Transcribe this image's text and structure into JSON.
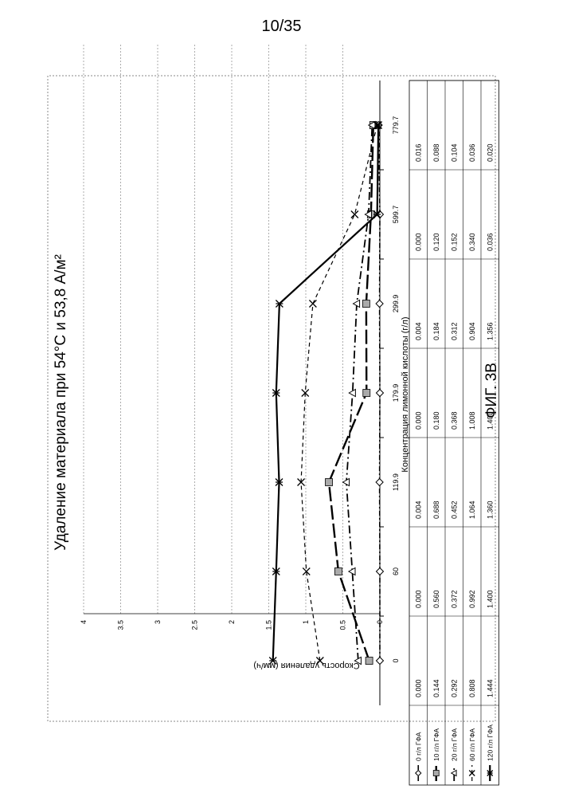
{
  "page_number": "10/35",
  "figure_caption": "ФИГ. 3В",
  "chart_data": {
    "type": "line",
    "title": "Удаление материала при 54°С и 53,8 А/м²",
    "xlabel": "Концентрация лимонной кислоты (г/л)",
    "ylabel": "Скорость удаления (мм/ч)",
    "categories": [
      "0",
      "60",
      "119.9",
      "179.9",
      "299.9",
      "599.7",
      "779.7"
    ],
    "yticks": [
      "0",
      "0.5",
      "1",
      "1.5",
      "2",
      "2.5",
      "3",
      "3.5",
      "4"
    ],
    "ylim": [
      0,
      4
    ],
    "grid": true,
    "legend": "data-table",
    "orientation": "rotated-90-ccw",
    "series": [
      {
        "name": "0 г/л ГФА",
        "marker": "diamond",
        "values": [
          0.0,
          0.0,
          0.004,
          0.0,
          0.004,
          0.0,
          0.016
        ],
        "table": [
          "0.000",
          "0.000",
          "0.004",
          "0.000",
          "0.004",
          "0.000",
          "0.016"
        ]
      },
      {
        "name": "10 г/л ГФА",
        "marker": "square",
        "values": [
          0.144,
          0.56,
          0.688,
          0.18,
          0.184,
          0.12,
          0.088
        ],
        "table": [
          "0.144",
          "0.560",
          "0.688",
          "0.180",
          "0.184",
          "0.120",
          "0.088"
        ]
      },
      {
        "name": "20 г/л ГФА",
        "marker": "triangle",
        "values": [
          0.292,
          0.372,
          0.452,
          0.368,
          0.312,
          0.152,
          0.104
        ],
        "table": [
          "0.292",
          "0.372",
          "0.452",
          "0.368",
          "0.312",
          "0.152",
          "0.104"
        ]
      },
      {
        "name": "60 г/л ГФА",
        "marker": "x",
        "values": [
          0.808,
          0.992,
          1.064,
          1.008,
          0.904,
          0.34,
          0.036
        ],
        "table": [
          "0.808",
          "0.992",
          "1.064",
          "1.008",
          "0.904",
          "0.340",
          "0.036"
        ]
      },
      {
        "name": "120 г/л ГФА",
        "marker": "star",
        "values": [
          1.444,
          1.4,
          1.36,
          1.4,
          1.356,
          0.036,
          0.02
        ],
        "table": [
          "1.444",
          "1.400",
          "1.360",
          "1.400",
          "1.356",
          "0.036",
          "0.020"
        ]
      }
    ]
  }
}
